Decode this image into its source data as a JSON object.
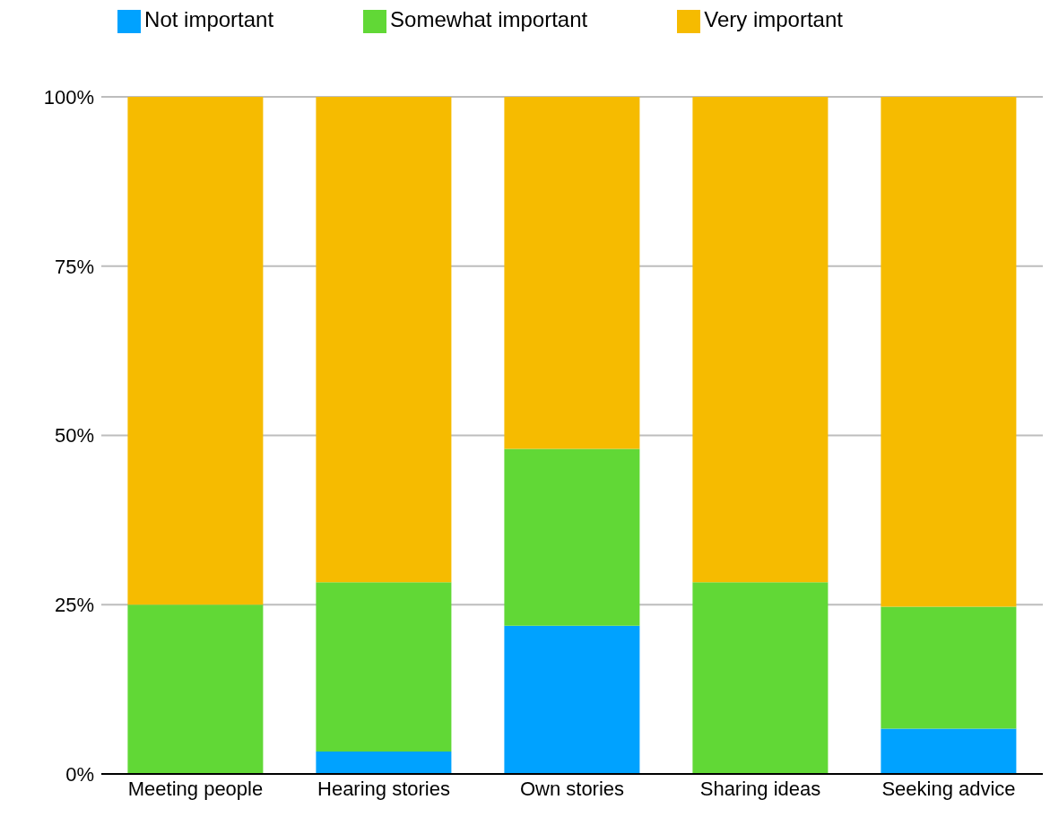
{
  "chart_data": {
    "type": "bar",
    "stacked": true,
    "categories": [
      "Meeting people",
      "Hearing stories",
      "Own stories",
      "Sharing ideas",
      "Seeking advice"
    ],
    "series": [
      {
        "name": "Not important",
        "color": "#00a2ff",
        "values": [
          0,
          3.3,
          21.9,
          0,
          6.7
        ]
      },
      {
        "name": "Somewhat important",
        "color": "#61d836",
        "values": [
          25,
          25,
          26.1,
          28.3,
          18
        ]
      },
      {
        "name": "Very important",
        "color": "#f6bb00",
        "values": [
          75,
          71.7,
          52,
          71.7,
          75.3
        ]
      }
    ],
    "ylim": [
      0,
      100
    ],
    "yticks": [
      {
        "value": 0,
        "label": "0%"
      },
      {
        "value": 25,
        "label": "25%"
      },
      {
        "value": 50,
        "label": "50%"
      },
      {
        "value": 75,
        "label": "75%"
      },
      {
        "value": 100,
        "label": "100%"
      }
    ],
    "grid": "y",
    "legend": "top"
  }
}
